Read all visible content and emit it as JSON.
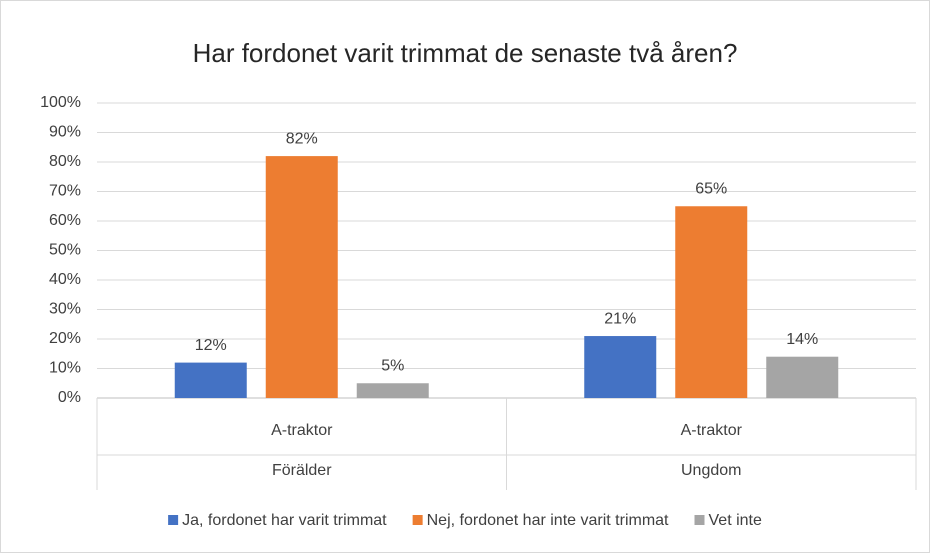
{
  "chart_data": {
    "type": "bar",
    "title": "Har fordonet varit trimmat de senaste två åren?",
    "categories": [
      "A-traktor",
      "A-traktor"
    ],
    "groups": [
      "Förälder",
      "Ungdom"
    ],
    "series": [
      {
        "name": "Ja, fordonet har varit trimmat",
        "color": "#4472c4",
        "values": [
          12,
          21
        ],
        "value_labels": [
          "12%",
          "21%"
        ]
      },
      {
        "name": "Nej, fordonet har inte varit trimmat",
        "color": "#ed7d31",
        "values": [
          82,
          65
        ],
        "value_labels": [
          "82%",
          "65%"
        ]
      },
      {
        "name": "Vet inte",
        "color": "#a5a5a5",
        "values": [
          5,
          14
        ],
        "value_labels": [
          "5%",
          "14%"
        ]
      }
    ],
    "ylim": [
      0,
      100
    ],
    "yticks": [
      {
        "value": 0,
        "label": "0%"
      },
      {
        "value": 10,
        "label": "10%"
      },
      {
        "value": 20,
        "label": "20%"
      },
      {
        "value": 30,
        "label": "30%"
      },
      {
        "value": 40,
        "label": "40%"
      },
      {
        "value": 50,
        "label": "50%"
      },
      {
        "value": 60,
        "label": "60%"
      },
      {
        "value": 70,
        "label": "70%"
      },
      {
        "value": 80,
        "label": "80%"
      },
      {
        "value": 90,
        "label": "90%"
      },
      {
        "value": 100,
        "label": "100%"
      }
    ],
    "grid": true,
    "legend": "bottom"
  }
}
